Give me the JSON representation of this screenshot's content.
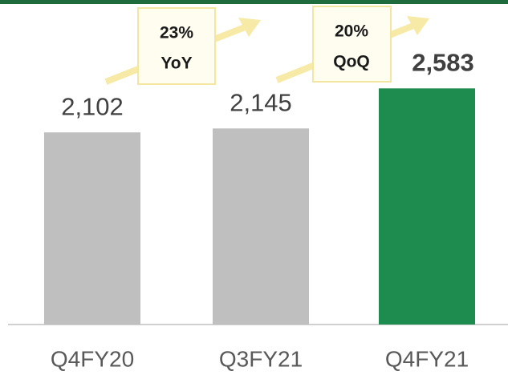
{
  "chart_data": {
    "type": "bar",
    "categories": [
      "Q4FY20",
      "Q3FY21",
      "Q4FY21"
    ],
    "values": [
      2102,
      2145,
      2583
    ],
    "value_labels": [
      "2,102",
      "2,145",
      "2,583"
    ],
    "colors": [
      "#bfbfbf",
      "#bfbfbf",
      "#1e8c4e"
    ],
    "ylim": [
      0,
      3550
    ],
    "annotations": [
      [
        "23%",
        "YoY"
      ],
      [
        "20%",
        "QoQ"
      ]
    ]
  }
}
